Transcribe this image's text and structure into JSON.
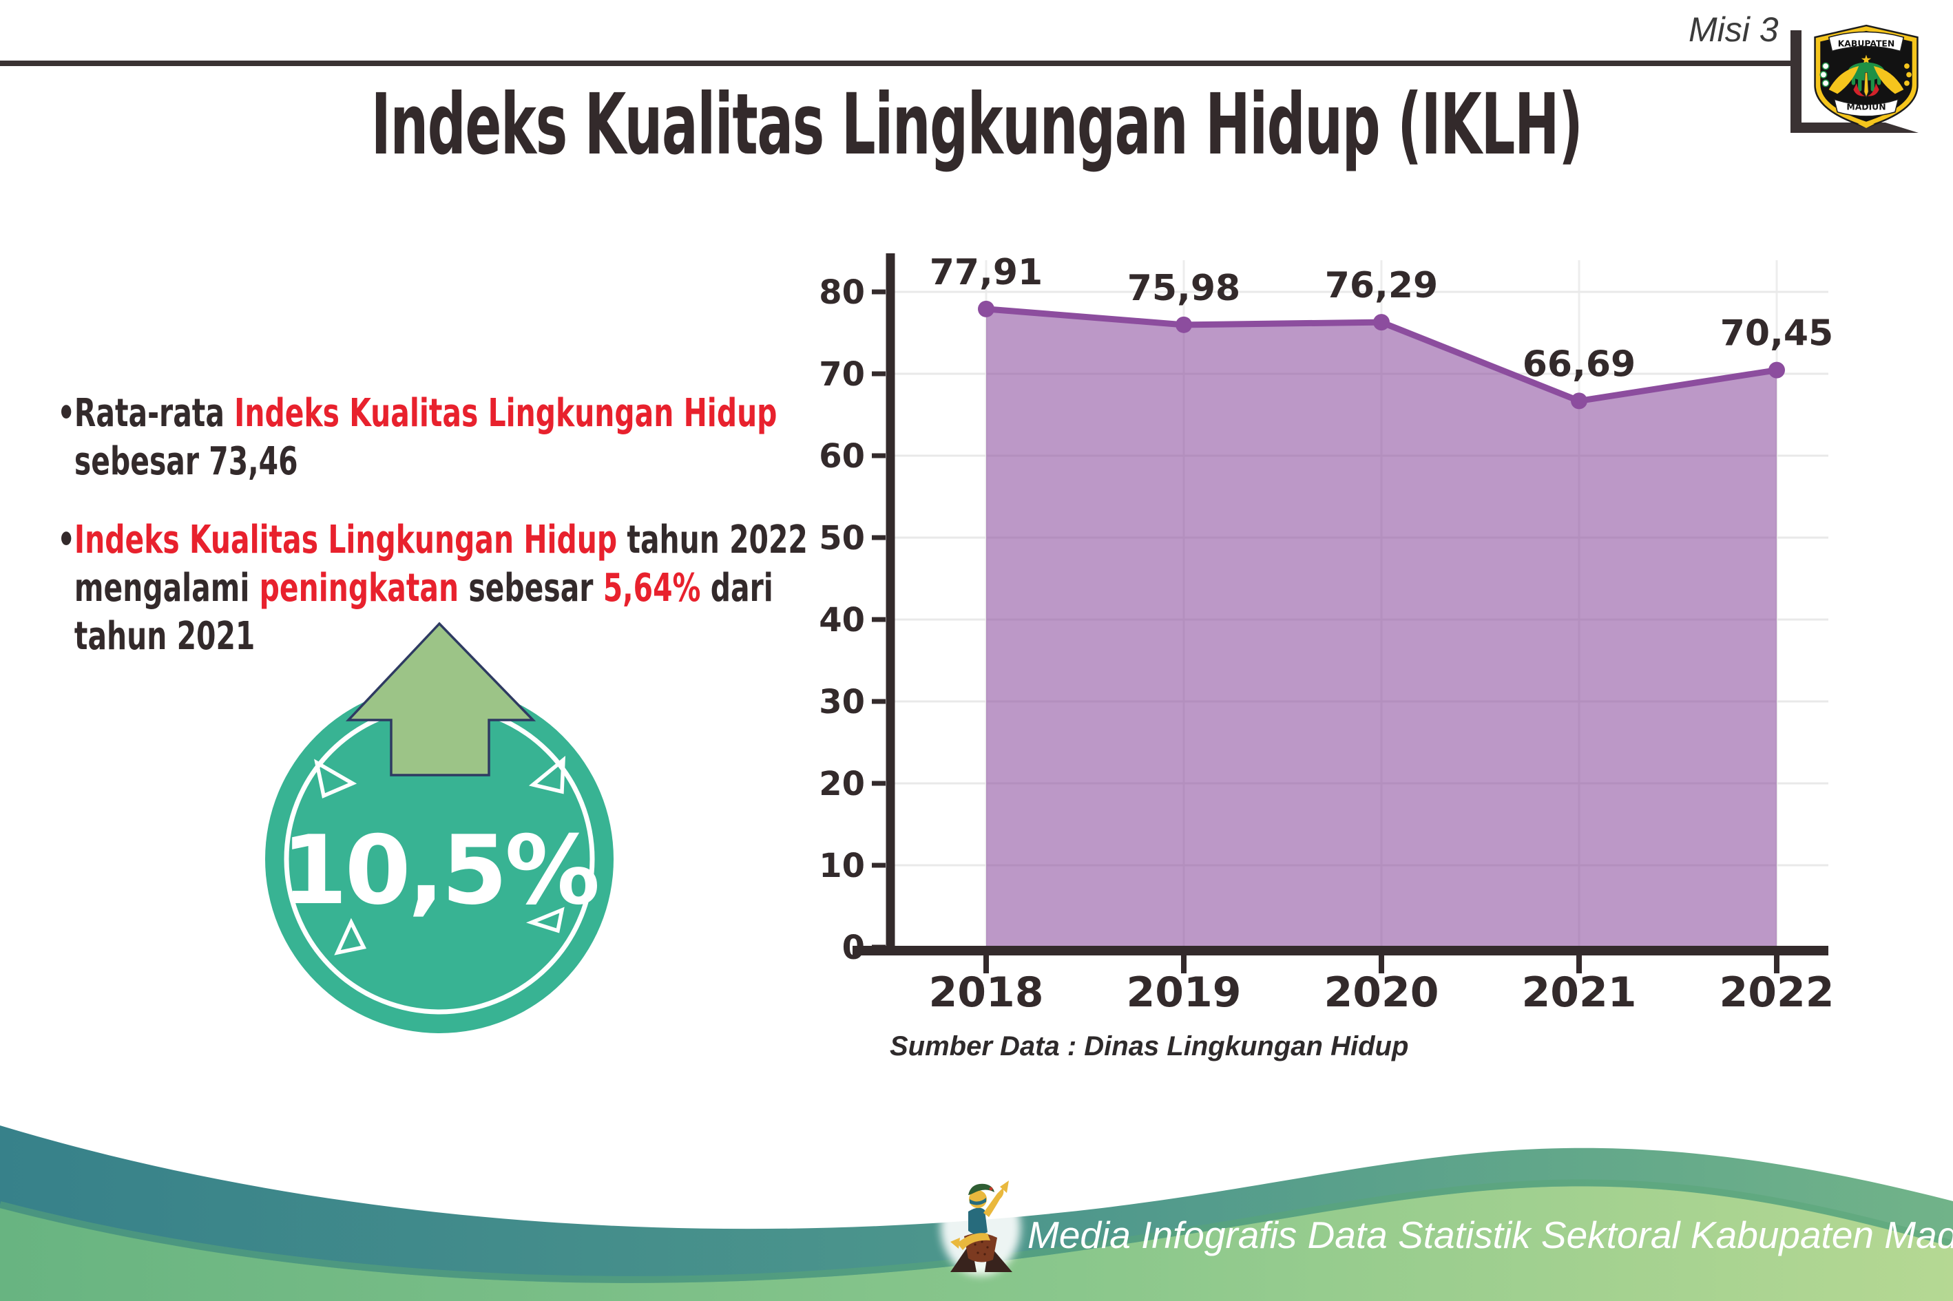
{
  "header": {
    "misi": "Misi 3",
    "title": "Indeks Kualitas Lingkungan Hidup (IKLH)",
    "logo_top": "KABUPATEN",
    "logo_bottom": "MADIUN"
  },
  "bullets": {
    "marker": "•",
    "items": [
      {
        "lines": [
          {
            "segments": [
              {
                "text": "Rata-rata ",
                "color": "dark"
              },
              {
                "text": "Indeks Kualitas Lingkungan Hidup",
                "color": "red"
              }
            ]
          },
          {
            "segments": [
              {
                "text": "sebesar 73,46",
                "color": "dark"
              }
            ]
          }
        ]
      },
      {
        "lines": [
          {
            "segments": [
              {
                "text": "Indeks Kualitas Lingkungan Hidup",
                "color": "red"
              },
              {
                "text": " tahun 2022",
                "color": "dark"
              }
            ]
          },
          {
            "segments": [
              {
                "text": "mengalami ",
                "color": "dark"
              },
              {
                "text": "peningkatan",
                "color": "red"
              },
              {
                "text": " sebesar ",
                "color": "dark"
              },
              {
                "text": "5,64%",
                "color": "red"
              },
              {
                "text": " dari",
                "color": "dark"
              }
            ]
          },
          {
            "segments": [
              {
                "text": "tahun 2021",
                "color": "dark"
              }
            ]
          }
        ]
      }
    ]
  },
  "badge": {
    "value": "10,5%",
    "circle_color": "#38b393",
    "arrow_color": "#9cc487",
    "arrow_outline": "#2e3a62"
  },
  "chart_data": {
    "type": "area",
    "title": "",
    "xlabel": "",
    "ylabel": "",
    "categories": [
      "2018",
      "2019",
      "2020",
      "2021",
      "2022"
    ],
    "values": [
      77.91,
      75.98,
      76.29,
      66.69,
      70.45
    ],
    "point_labels": [
      "77,91",
      "75,98",
      "76,29",
      "66,69",
      "70,45"
    ],
    "ylim": [
      0,
      80
    ],
    "ytick_step": 10,
    "grid": true,
    "legend": "none",
    "line_color": "#8c4d9e",
    "fill_color": "#8c4d9e",
    "fill_opacity": 0.58,
    "axis_color": "#332a2b",
    "source_note": "Sumber Data : Dinas Lingkungan Hidup"
  },
  "footer": {
    "credit": "Media Infografis Data Statistik Sektoral Kabupaten Madiun |"
  },
  "colors": {
    "text_dark": "#332a2b",
    "text_red": "#e8212d",
    "rule_dark": "#3a3233",
    "footer_teal_start": "#37818a",
    "footer_teal_end": "#71b389",
    "footer_green_start": "#68b481",
    "footer_green_end": "#b5d893",
    "footer_rim": "#5aa578"
  }
}
